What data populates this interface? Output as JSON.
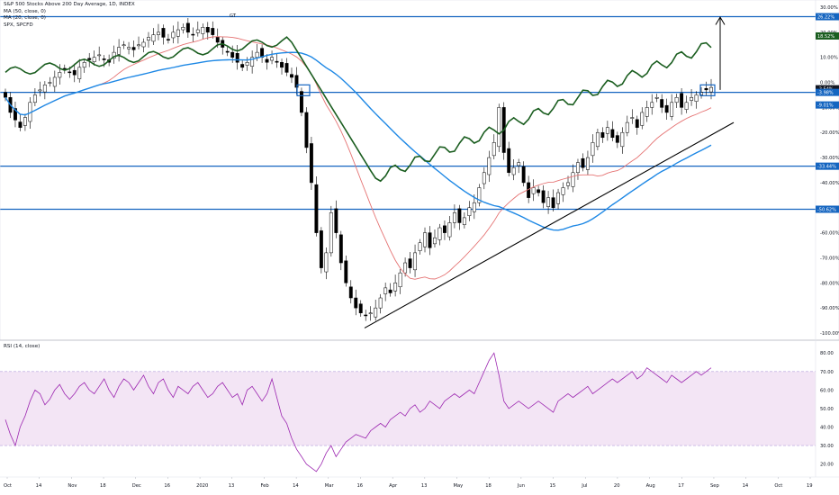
{
  "legend": {
    "title": "S&P 500 Stocks Above 200 Day Average, 1D, INDEX",
    "ma50": "MA (50, close, 0)",
    "ma20": "MA (20, close, 0)",
    "spx": "SPX, SPCFD",
    "rsi": "RSI (14, close)"
  },
  "colors": {
    "candle_up": "#ffffff",
    "candle_down": "#000000",
    "ma50": "#1e88e5",
    "ma20": "#e57373",
    "spx": "#1b5e20",
    "hline": "#1565c0",
    "trend": "#000000",
    "rsi_line": "#9c27b0",
    "rsi_band": "#f3e5f5"
  },
  "chart_data": [
    {
      "type": "candlestick",
      "title": "S&P 500 Stocks Above 200 Day Average, 1D, INDEX",
      "y_axis_ticks": [
        "30.00%",
        "20.00%",
        "10.00%",
        "0.00%",
        "-10.00%",
        "-20.00%",
        "-30.00%",
        "-40.00%",
        "-50.00%",
        "-60.00%",
        "-70.00%",
        "-80.00%",
        "-90.00%",
        "-100.00%"
      ],
      "x_axis_ticks": [
        "Oct",
        "14",
        "Nov",
        "18",
        "Dec",
        "16",
        "2020",
        "13",
        "Feb",
        "14",
        "Mar",
        "16",
        "Apr",
        "13",
        "May",
        "18",
        "Jun",
        "15",
        "Jul",
        "20",
        "Aug",
        "17",
        "Sep",
        "14",
        "Oct",
        "19"
      ],
      "ylim": [
        -100,
        30
      ],
      "price_labels": [
        {
          "text": "26.22%",
          "value": 26.22,
          "color": "#1565c0"
        },
        {
          "text": "18.52%",
          "value": 18.52,
          "color": "#1b5e20"
        },
        {
          "text": "-2.54%",
          "value": -2.54,
          "color": "#131722"
        },
        {
          "text": "-3.98%",
          "value": -3.98,
          "color": "#1565c0"
        },
        {
          "text": "-9.01%",
          "value": -9.01,
          "color": "#1565c0"
        },
        {
          "text": "-33.44%",
          "value": -33.44,
          "color": "#1565c0"
        },
        {
          "text": "-50.62%",
          "value": -50.62,
          "color": "#1565c0"
        }
      ],
      "horizontal_levels": [
        26.22,
        -3.98,
        -33.44,
        -50.62
      ],
      "annotations": [
        "GT"
      ],
      "series": [
        {
          "name": "S&P 500 Stocks Above 200 Day Average",
          "closes": [
            -6,
            -12,
            -15,
            -18,
            -14,
            -8,
            -5,
            -3,
            -1,
            0,
            2,
            4,
            5,
            4,
            3,
            6,
            8,
            9,
            10,
            11,
            9,
            8,
            12,
            14,
            15,
            14,
            13,
            15,
            16,
            18,
            19,
            20,
            18,
            17,
            20,
            21,
            22,
            20,
            19,
            21,
            22,
            20,
            19,
            16,
            14,
            12,
            10,
            8,
            6,
            8,
            10,
            12,
            10,
            8,
            10,
            8,
            6,
            4,
            2,
            -2,
            -12,
            -26,
            -40,
            -60,
            -74,
            -68,
            -52,
            -60,
            -72,
            -80,
            -86,
            -90,
            -92,
            -93,
            -92,
            -90,
            -86,
            -82,
            -84,
            -80,
            -76,
            -72,
            -74,
            -68,
            -64,
            -60,
            -66,
            -62,
            -58,
            -60,
            -56,
            -52,
            -56,
            -54,
            -50,
            -48,
            -42,
            -36,
            -30,
            -24,
            -10,
            -28,
            -36,
            -34,
            -32,
            -40,
            -46,
            -42,
            -44,
            -48,
            -46,
            -50,
            -44,
            -42,
            -40,
            -36,
            -32,
            -34,
            -30,
            -24,
            -20,
            -22,
            -18,
            -22,
            -24,
            -20,
            -16,
            -14,
            -18,
            -12,
            -10,
            -8,
            -6,
            -10,
            -12,
            -8,
            -6,
            -10,
            -8,
            -6,
            -5,
            -4,
            -3,
            -2
          ]
        },
        {
          "name": "MA (50, close, 0)",
          "color": "#1e88e5"
        },
        {
          "name": "MA (20, close, 0)",
          "color": "#e57373"
        },
        {
          "name": "SPX, SPCFD",
          "color": "#1b5e20"
        }
      ]
    },
    {
      "type": "line",
      "title": "RSI (14, close)",
      "y_axis_ticks": [
        "80.00",
        "70.00",
        "60.00",
        "50.00",
        "40.00",
        "30.00",
        "20.00"
      ],
      "band": [
        30,
        70
      ],
      "ylim": [
        14,
        84
      ],
      "series": [
        {
          "name": "RSI (14, close)",
          "values": [
            44,
            36,
            30,
            40,
            46,
            54,
            60,
            58,
            52,
            55,
            60,
            63,
            58,
            55,
            58,
            62,
            64,
            60,
            58,
            62,
            66,
            60,
            56,
            62,
            66,
            64,
            60,
            64,
            68,
            62,
            58,
            64,
            66,
            60,
            56,
            62,
            60,
            58,
            62,
            64,
            60,
            56,
            58,
            62,
            64,
            60,
            56,
            58,
            52,
            60,
            62,
            58,
            54,
            58,
            66,
            56,
            46,
            42,
            34,
            28,
            24,
            20,
            18,
            16,
            20,
            26,
            30,
            24,
            28,
            32,
            34,
            36,
            35,
            34,
            38,
            40,
            42,
            40,
            44,
            46,
            48,
            46,
            50,
            52,
            48,
            50,
            54,
            52,
            50,
            54,
            56,
            58,
            56,
            58,
            60,
            58,
            64,
            70,
            76,
            80,
            68,
            54,
            50,
            52,
            54,
            52,
            50,
            52,
            54,
            52,
            50,
            48,
            54,
            56,
            58,
            56,
            58,
            60,
            62,
            58,
            60,
            62,
            64,
            66,
            64,
            66,
            68,
            70,
            66,
            68,
            72,
            70,
            68,
            66,
            64,
            68,
            66,
            64,
            66,
            68,
            70,
            68,
            70,
            72
          ]
        }
      ]
    }
  ]
}
